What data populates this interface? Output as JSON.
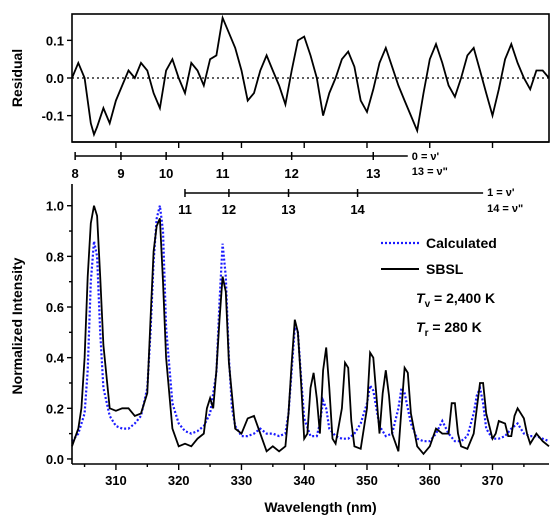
{
  "chart_data": [
    {
      "panel": "residual",
      "type": "line",
      "ylabel": "Residual",
      "xlim": [
        303,
        379
      ],
      "ylim": [
        -0.17,
        0.17
      ],
      "yticks": [
        "0.1",
        "0.0",
        "-0.1"
      ],
      "yticks_v": [
        0.1,
        0.0,
        -0.1
      ],
      "zero_line": "dotted",
      "x": [
        303,
        304,
        305,
        306,
        306.5,
        307,
        308,
        309,
        310,
        311,
        312,
        313,
        314,
        315,
        316,
        317,
        318,
        319,
        320,
        321,
        322,
        323,
        324,
        325,
        326,
        327,
        328,
        329,
        330,
        331,
        332,
        333,
        334,
        335,
        336,
        337,
        338,
        339,
        340,
        341,
        342,
        343,
        344,
        345,
        346,
        347,
        348,
        349,
        350,
        351,
        352,
        353,
        354,
        355,
        356,
        357,
        358,
        359,
        360,
        361,
        362,
        363,
        364,
        365,
        366,
        367,
        368,
        369,
        370,
        371,
        372,
        373,
        374,
        375,
        376,
        377,
        378,
        379
      ],
      "residual": [
        0.0,
        0.04,
        0.0,
        -0.12,
        -0.15,
        -0.13,
        -0.08,
        -0.12,
        -0.06,
        -0.02,
        0.02,
        0.0,
        0.04,
        0.02,
        -0.04,
        -0.08,
        0.02,
        0.05,
        0.0,
        -0.04,
        0.04,
        0.02,
        -0.02,
        0.05,
        0.06,
        0.16,
        0.12,
        0.08,
        0.02,
        -0.06,
        -0.04,
        0.02,
        0.06,
        0.02,
        -0.02,
        -0.07,
        0.02,
        0.1,
        0.11,
        0.06,
        0.0,
        -0.1,
        -0.04,
        0.0,
        0.05,
        0.07,
        0.03,
        -0.06,
        -0.09,
        -0.03,
        0.04,
        0.08,
        0.03,
        -0.02,
        -0.06,
        -0.1,
        -0.14,
        -0.04,
        0.05,
        0.09,
        0.04,
        -0.02,
        -0.05,
        0.0,
        0.06,
        0.08,
        0.02,
        -0.04,
        -0.1,
        -0.03,
        0.05,
        0.09,
        0.04,
        0.0,
        -0.03,
        0.02,
        0.02,
        0.0
      ]
    },
    {
      "panel": "spectrum",
      "type": "line",
      "xlabel": "Wavelength (nm)",
      "ylabel": "Normalized Intensity",
      "xlim": [
        303,
        379
      ],
      "ylim": [
        -0.02,
        1.07
      ],
      "xticks": [
        "310",
        "320",
        "330",
        "340",
        "350",
        "360",
        "370"
      ],
      "xticks_v": [
        310,
        320,
        330,
        340,
        350,
        360,
        370
      ],
      "yticks": [
        "0.0",
        "0.2",
        "0.4",
        "0.6",
        "0.8",
        "1.0"
      ],
      "yticks_v": [
        0,
        0.2,
        0.4,
        0.6,
        0.8,
        1.0
      ],
      "legend_position": "right",
      "colors": {
        "calculated": "#1a1aff",
        "sbsl": "#000000"
      },
      "series": [
        {
          "name": "Calculated",
          "style": "dotted",
          "x": [
            303,
            304,
            305,
            305.5,
            306,
            306.5,
            307,
            307.5,
            308,
            309,
            310,
            311,
            312,
            313,
            314,
            315,
            315.5,
            316,
            316.5,
            317,
            317.5,
            318,
            319,
            320,
            321,
            322,
            323,
            324,
            325,
            326,
            326.5,
            327,
            327.5,
            328,
            328.5,
            329,
            330,
            331,
            332,
            333,
            334,
            335,
            336,
            337,
            337.5,
            338,
            338.5,
            339,
            339.5,
            340,
            341,
            342,
            342.5,
            343,
            343.5,
            344,
            345,
            346,
            347,
            348,
            349,
            350,
            350.5,
            351,
            351.5,
            352,
            353,
            354,
            355,
            355.5,
            356,
            357,
            358,
            359,
            360,
            361,
            362,
            363,
            364,
            365,
            366,
            367,
            367.5,
            368,
            368.5,
            369,
            370,
            371,
            372,
            373,
            374,
            375,
            376,
            377,
            378,
            379
          ],
          "y": [
            0.07,
            0.1,
            0.18,
            0.35,
            0.7,
            0.86,
            0.8,
            0.5,
            0.28,
            0.17,
            0.13,
            0.12,
            0.12,
            0.14,
            0.17,
            0.28,
            0.5,
            0.78,
            0.95,
            1.0,
            0.9,
            0.52,
            0.22,
            0.14,
            0.11,
            0.1,
            0.11,
            0.13,
            0.18,
            0.34,
            0.62,
            0.85,
            0.72,
            0.4,
            0.2,
            0.13,
            0.09,
            0.09,
            0.1,
            0.12,
            0.1,
            0.1,
            0.09,
            0.1,
            0.18,
            0.35,
            0.52,
            0.5,
            0.32,
            0.16,
            0.09,
            0.09,
            0.14,
            0.23,
            0.2,
            0.12,
            0.09,
            0.08,
            0.08,
            0.1,
            0.14,
            0.22,
            0.29,
            0.27,
            0.2,
            0.13,
            0.09,
            0.1,
            0.2,
            0.28,
            0.26,
            0.14,
            0.08,
            0.07,
            0.07,
            0.1,
            0.15,
            0.1,
            0.07,
            0.07,
            0.09,
            0.18,
            0.25,
            0.28,
            0.22,
            0.12,
            0.08,
            0.08,
            0.09,
            0.12,
            0.14,
            0.1,
            0.09,
            0.09,
            0.08,
            0.07
          ]
        },
        {
          "name": "SBSL",
          "style": "solid",
          "x": [
            303,
            304,
            304.5,
            305,
            305.5,
            306,
            306.5,
            307,
            307.5,
            308,
            309,
            310,
            311,
            312,
            313,
            314,
            315,
            315.5,
            316,
            316.5,
            317,
            317.5,
            318,
            319,
            320,
            321,
            322,
            323,
            324,
            324.5,
            325,
            325.5,
            326,
            326.5,
            327,
            327.5,
            328,
            329,
            330,
            331,
            332,
            333,
            334,
            335,
            336,
            337,
            337.5,
            338,
            338.5,
            339,
            339.5,
            340,
            340.5,
            341,
            341.5,
            342,
            342.5,
            343,
            343.5,
            344,
            344.5,
            345,
            346,
            346.5,
            347,
            347.5,
            348,
            349,
            350,
            350.5,
            351,
            351.5,
            352,
            352.5,
            353,
            353.5,
            354,
            355,
            355.5,
            356,
            356.5,
            357,
            358,
            359,
            360,
            361,
            362,
            363,
            363.5,
            364,
            364.5,
            365,
            366,
            367,
            367.5,
            368,
            368.5,
            369,
            370,
            370.5,
            371,
            372,
            372.5,
            373,
            373.5,
            374,
            375,
            375.5,
            376,
            377,
            378,
            379
          ],
          "y": [
            0.05,
            0.12,
            0.2,
            0.4,
            0.72,
            0.93,
            1.0,
            0.96,
            0.72,
            0.45,
            0.2,
            0.19,
            0.2,
            0.2,
            0.17,
            0.18,
            0.26,
            0.55,
            0.82,
            0.92,
            0.95,
            0.7,
            0.4,
            0.12,
            0.05,
            0.06,
            0.05,
            0.08,
            0.1,
            0.2,
            0.24,
            0.2,
            0.35,
            0.55,
            0.72,
            0.66,
            0.38,
            0.12,
            0.1,
            0.16,
            0.17,
            0.1,
            0.03,
            0.05,
            0.03,
            0.05,
            0.18,
            0.38,
            0.55,
            0.5,
            0.3,
            0.08,
            0.1,
            0.28,
            0.34,
            0.24,
            0.1,
            0.35,
            0.44,
            0.28,
            0.08,
            0.06,
            0.2,
            0.38,
            0.36,
            0.15,
            0.05,
            0.04,
            0.2,
            0.42,
            0.4,
            0.25,
            0.1,
            0.26,
            0.35,
            0.25,
            0.1,
            0.03,
            0.2,
            0.36,
            0.34,
            0.18,
            0.05,
            0.02,
            0.05,
            0.12,
            0.1,
            0.1,
            0.22,
            0.22,
            0.1,
            0.05,
            0.04,
            0.1,
            0.2,
            0.3,
            0.3,
            0.18,
            0.08,
            0.1,
            0.15,
            0.14,
            0.09,
            0.09,
            0.17,
            0.2,
            0.16,
            0.1,
            0.06,
            0.1,
            0.07,
            0.05
          ]
        }
      ],
      "legend": [
        {
          "label": "Calculated",
          "style": "dotted",
          "color": "#1a1aff"
        },
        {
          "label": "SBSL",
          "style": "solid",
          "color": "#000000"
        }
      ],
      "annotations": {
        "tv_symbol": "T",
        "tv_sub": "v",
        "tv_value": " = 2,400 K",
        "tr_symbol": "T",
        "tr_sub": "r",
        "tr_value": " = 280 K"
      },
      "progressions": [
        {
          "top_label": "0 = ν'",
          "bottom_label": "13 = ν\"",
          "line_x": [
            303.5,
            356.5
          ],
          "ticks": [
            {
              "x": 303.5,
              "label": "8"
            },
            {
              "x": 310.8,
              "label": "9"
            },
            {
              "x": 318.0,
              "label": "10"
            },
            {
              "x": 327.0,
              "label": "11"
            },
            {
              "x": 338.0,
              "label": "12"
            },
            {
              "x": 351.0,
              "label": "13"
            }
          ]
        },
        {
          "top_label": "1 = ν'",
          "bottom_label": "14 = ν\"",
          "line_x": [
            321.0,
            368.5
          ],
          "ticks": [
            {
              "x": 321.0,
              "label": "11"
            },
            {
              "x": 328.0,
              "label": "12"
            },
            {
              "x": 337.5,
              "label": "13"
            },
            {
              "x": 348.5,
              "label": "14"
            }
          ]
        }
      ]
    }
  ]
}
